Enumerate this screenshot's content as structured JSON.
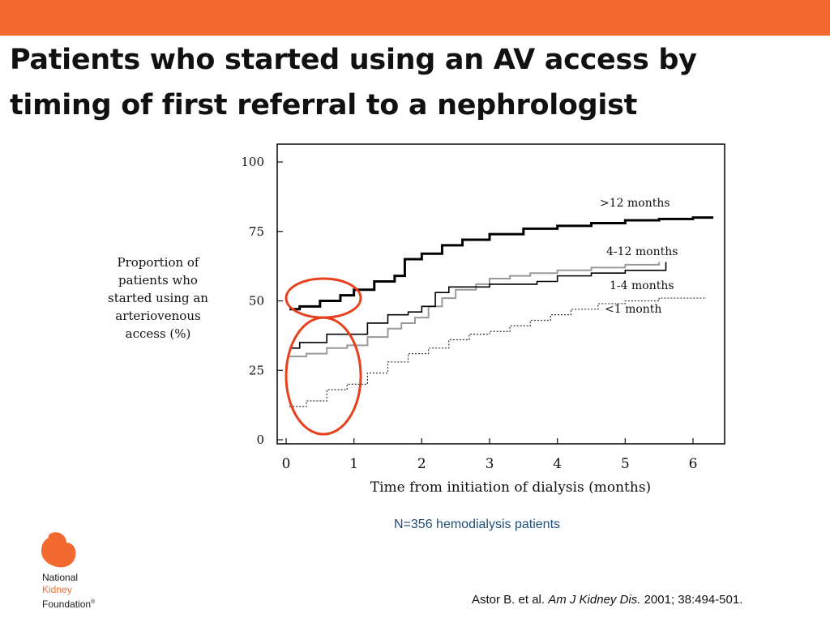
{
  "slide": {
    "title": "Patients who started using an AV access by timing of first referral to a nephrologist",
    "note": "N=356 hemodialysis patients",
    "citation": {
      "authors": "Astor B. et al.",
      "journal": "Am J Kidney Dis.",
      "details": "2001; 38:494-501."
    },
    "logo": {
      "line1": "National",
      "line2": "Kidney",
      "line3": "Foundation",
      "mark": "®"
    },
    "colors": {
      "brand": "#f26a30",
      "note": "#1f4e79",
      "highlight_circle": "#e8401c"
    }
  },
  "chart_data": {
    "type": "line",
    "title": "",
    "xlabel": "Time from initiation of dialysis (months)",
    "ylabel_lines": [
      "Proportion of",
      "patients who",
      "started using an",
      "arteriovenous",
      "access  (%)"
    ],
    "xlim": [
      0,
      6.3
    ],
    "ylim": [
      0,
      100
    ],
    "xticks": [
      0,
      1,
      2,
      3,
      4,
      5,
      6
    ],
    "yticks": [
      0,
      25,
      50,
      75,
      100
    ],
    "grid": false,
    "legend": "inline labels at right end of each series",
    "series": [
      {
        "name": ">12 months",
        "style": "solid-thick",
        "x": [
          0.05,
          0.2,
          0.5,
          0.8,
          1.0,
          1.3,
          1.6,
          1.75,
          2.0,
          2.3,
          2.6,
          3.0,
          3.5,
          4.0,
          4.5,
          5.0,
          5.5,
          6.0,
          6.3
        ],
        "y": [
          47,
          48,
          50,
          52,
          54,
          57,
          59,
          65,
          67,
          70,
          72,
          74,
          76,
          77,
          78,
          79,
          79.5,
          80,
          80
        ]
      },
      {
        "name": "4-12 months",
        "style": "solid-gray",
        "x": [
          0.05,
          0.3,
          0.6,
          0.9,
          1.2,
          1.5,
          1.7,
          1.9,
          2.1,
          2.3,
          2.5,
          2.8,
          3.0,
          3.3,
          3.6,
          4.0,
          4.5,
          5.0,
          5.5
        ],
        "y": [
          30,
          31,
          33,
          34,
          37,
          40,
          42,
          44,
          48,
          51,
          54,
          56,
          58,
          59,
          60,
          61,
          62,
          63,
          64
        ]
      },
      {
        "name": "1-4 months",
        "style": "solid",
        "x": [
          0.05,
          0.2,
          0.6,
          1.0,
          1.2,
          1.5,
          1.8,
          2.0,
          2.2,
          2.4,
          2.7,
          3.0,
          3.3,
          3.7,
          4.0,
          4.5,
          5.0,
          5.3,
          5.6
        ],
        "y": [
          33,
          35,
          38,
          38,
          42,
          45,
          46,
          48,
          53,
          55,
          55,
          56,
          56,
          57,
          59,
          60,
          61,
          61,
          64
        ]
      },
      {
        "name": "<1 month",
        "style": "dotted",
        "x": [
          0.05,
          0.3,
          0.6,
          0.9,
          1.2,
          1.5,
          1.8,
          2.1,
          2.4,
          2.7,
          3.0,
          3.3,
          3.6,
          3.9,
          4.2,
          4.6,
          5.0,
          5.5,
          6.0,
          6.2
        ],
        "y": [
          12,
          14,
          18,
          20,
          24,
          28,
          31,
          33,
          36,
          38,
          39,
          41,
          43,
          45,
          47,
          49,
          50,
          51,
          51,
          51
        ]
      }
    ],
    "annotations": [
      {
        "type": "ellipse",
        "color": "#e8401c",
        "cx": 0.55,
        "cy": 51,
        "rx": 0.55,
        "ry": 7
      },
      {
        "type": "ellipse",
        "color": "#e8401c",
        "cx": 0.55,
        "cy": 23,
        "rx": 0.55,
        "ry": 21
      }
    ]
  }
}
